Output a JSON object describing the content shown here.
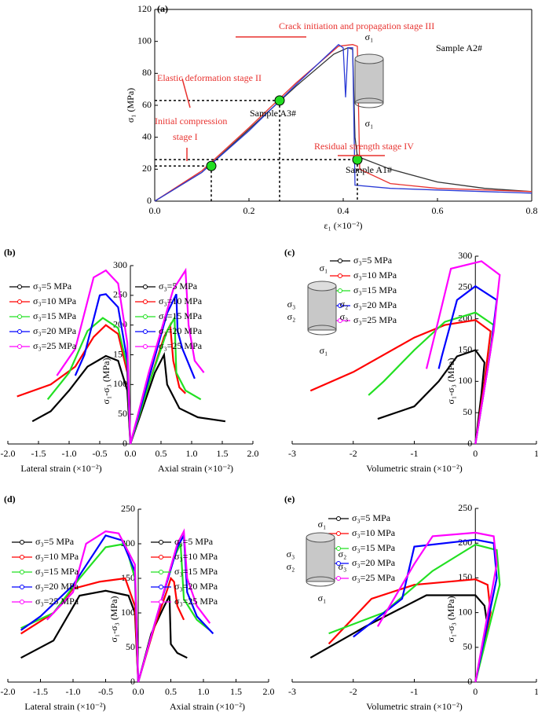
{
  "chart_data": [
    {
      "type": "line",
      "label": "(a)",
      "y_label": "σ₁ (MPa)",
      "x_label": "ε₁ (×10⁻²)",
      "xlim": [
        0,
        0.8
      ],
      "ylim": [
        0,
        120
      ],
      "xticks": [
        {
          "value": 0,
          "label": "0.0"
        },
        {
          "value": 0.2,
          "label": "0.2"
        },
        {
          "value": 0.4,
          "label": "0.4"
        },
        {
          "value": 0.6,
          "label": "0.6"
        },
        {
          "value": 0.8,
          "label": "0.8"
        }
      ],
      "yticks": [
        0,
        20,
        40,
        60,
        80,
        100,
        120
      ],
      "series": [
        {
          "name": "Sample A1#",
          "color": "#333333",
          "x": [
            0,
            0.1,
            0.2,
            0.3,
            0.38,
            0.41,
            0.42,
            0.425,
            0.43,
            0.5,
            0.6,
            0.7,
            0.8
          ],
          "values": [
            0,
            18,
            45,
            72,
            92,
            96,
            95,
            40,
            28,
            20,
            12,
            8,
            6
          ]
        },
        {
          "name": "Sample A2#",
          "color": "#e8322f",
          "x": [
            0,
            0.1,
            0.2,
            0.3,
            0.39,
            0.42,
            0.43,
            0.435,
            0.5,
            0.6,
            0.8
          ],
          "values": [
            0,
            19,
            46,
            74,
            97,
            98,
            97,
            20,
            11,
            8,
            6
          ]
        },
        {
          "name": "Sample A3#",
          "color": "#2b3bd6",
          "x": [
            0,
            0.1,
            0.2,
            0.3,
            0.39,
            0.4,
            0.405,
            0.41,
            0.42,
            0.425,
            0.5,
            0.6,
            0.8
          ],
          "values": [
            0,
            18,
            44,
            73,
            98,
            96,
            65,
            96,
            96,
            10,
            8,
            7,
            5
          ]
        }
      ],
      "highlight_points": {
        "x": [
          0.12,
          0.265,
          0.43
        ],
        "values": [
          22,
          63,
          26
        ]
      },
      "annotations": [
        "Crack initiation and propagation stage III",
        "Elastic deformation stage II",
        "Initial compression",
        "stage I",
        "Residual strength stage IV"
      ],
      "icon_labels": [
        "σ₁",
        "σ₁"
      ]
    },
    {
      "type": "line",
      "label": "(b)",
      "y_label": "σ₁-σ₃ (MPa)",
      "x_labels": [
        "Lateral strain (×10⁻²)",
        "Axial strain (×10⁻²)"
      ],
      "xlim": [
        -2,
        2
      ],
      "ylim": [
        0,
        300
      ],
      "xticks": [
        {
          "value": -2,
          "label": "-2.0"
        },
        {
          "value": -1.5,
          "label": "-1.5"
        },
        {
          "value": -1,
          "label": "-1.0"
        },
        {
          "value": -0.5,
          "label": "-0.5"
        },
        {
          "value": 0,
          "label": "0.0"
        },
        {
          "value": 0.5,
          "label": "0.5"
        },
        {
          "value": 1,
          "label": "1.0"
        },
        {
          "value": 1.5,
          "label": "1.5"
        },
        {
          "value": 2,
          "label": "2.0"
        }
      ],
      "yticks": [
        0,
        50,
        100,
        150,
        200,
        250,
        300
      ],
      "series": [
        {
          "name": "σ₃=5 MPa",
          "color": "#000000",
          "x": [
            0,
            -0.05,
            -0.2,
            -0.4,
            -0.7,
            -1,
            -1.3,
            -1.6
          ],
          "values": [
            0,
            90,
            140,
            148,
            130,
            90,
            55,
            38
          ]
        },
        {
          "name": "σ₃=10 MPa",
          "color": "#ff0000",
          "x": [
            0,
            -0.05,
            -0.2,
            -0.4,
            -0.6,
            -0.9,
            -1.3,
            -1.85
          ],
          "values": [
            0,
            120,
            185,
            200,
            180,
            130,
            100,
            80
          ]
        },
        {
          "name": "σ₃=15 MPa",
          "color": "#22e022",
          "x": [
            0,
            -0.05,
            -0.2,
            -0.45,
            -0.7,
            -1,
            -1.35
          ],
          "values": [
            0,
            130,
            195,
            212,
            190,
            120,
            75
          ]
        },
        {
          "name": "σ₃=20 MPa",
          "color": "#0000ff",
          "x": [
            0,
            -0.05,
            -0.2,
            -0.4,
            -0.5,
            -0.75,
            -0.9
          ],
          "values": [
            0,
            140,
            230,
            252,
            250,
            150,
            115
          ]
        },
        {
          "name": "σ₃=25 MPa",
          "color": "#ff00ff",
          "x": [
            0,
            -0.05,
            -0.2,
            -0.4,
            -0.6,
            -0.9,
            -1.2
          ],
          "values": [
            0,
            170,
            270,
            292,
            280,
            160,
            115
          ]
        },
        {
          "name": "σ₃=5 MPa",
          "color": "#000000",
          "x": [
            0,
            0.2,
            0.4,
            0.55,
            0.6,
            0.8,
            1.1,
            1.55
          ],
          "values": [
            0,
            60,
            120,
            150,
            100,
            60,
            45,
            38
          ]
        },
        {
          "name": "σ₃=10 MPa",
          "color": "#ff0000",
          "x": [
            0,
            0.3,
            0.55,
            0.65,
            0.7,
            0.8,
            0.9
          ],
          "values": [
            0,
            100,
            180,
            200,
            140,
            95,
            85
          ]
        },
        {
          "name": "σ₃=15 MPa",
          "color": "#22e022",
          "x": [
            0,
            0.3,
            0.6,
            0.72,
            0.75,
            0.9,
            1.15
          ],
          "values": [
            0,
            100,
            190,
            212,
            120,
            90,
            75
          ]
        },
        {
          "name": "σ₃=20 MPa",
          "color": "#0000ff",
          "x": [
            0,
            0.3,
            0.6,
            0.75,
            0.77,
            0.85,
            1.05
          ],
          "values": [
            0,
            110,
            220,
            252,
            190,
            160,
            110
          ]
        },
        {
          "name": "σ₃=25 MPa",
          "color": "#ff00ff",
          "x": [
            0,
            0.3,
            0.7,
            0.9,
            0.95,
            1.05,
            1.2
          ],
          "values": [
            0,
            120,
            260,
            292,
            200,
            140,
            120
          ]
        }
      ]
    },
    {
      "type": "line",
      "label": "(c)",
      "y_label": "σ₁-σ₃ (MPa)",
      "x_label": "Volumetric strain (×10⁻²)",
      "xlim": [
        -3,
        1
      ],
      "ylim": [
        0,
        300
      ],
      "xticks": [
        -3,
        -2,
        -1,
        0,
        1
      ],
      "yticks": [
        0,
        50,
        100,
        150,
        200,
        250,
        300
      ],
      "series": [
        {
          "name": "σ₃=5 MPa",
          "color": "#000000",
          "x": [
            0,
            0.1,
            0.15,
            0,
            -0.3,
            -0.6,
            -1,
            -1.6
          ],
          "values": [
            0,
            80,
            130,
            150,
            140,
            100,
            60,
            40
          ]
        },
        {
          "name": "σ₃=10 MPa",
          "color": "#ff0000",
          "x": [
            0,
            0.15,
            0.25,
            0,
            -0.5,
            -1,
            -2,
            -2.7
          ],
          "values": [
            0,
            100,
            180,
            198,
            190,
            170,
            115,
            85
          ]
        },
        {
          "name": "σ₃=15 MPa",
          "color": "#22e022",
          "x": [
            0,
            0.2,
            0.3,
            0,
            -0.5,
            -1,
            -1.5,
            -1.75
          ],
          "values": [
            0,
            120,
            190,
            210,
            195,
            150,
            100,
            78
          ]
        },
        {
          "name": "σ₃=20 MPa",
          "color": "#0000ff",
          "x": [
            0,
            0.25,
            0.35,
            0,
            -0.3,
            -0.55,
            -0.6
          ],
          "values": [
            0,
            150,
            230,
            252,
            230,
            140,
            120
          ]
        },
        {
          "name": "σ₃=25 MPa",
          "color": "#ff00ff",
          "x": [
            0,
            0.3,
            0.4,
            0.1,
            -0.4,
            -0.6,
            -0.8
          ],
          "values": [
            0,
            180,
            270,
            292,
            280,
            200,
            120
          ]
        }
      ],
      "icon_labels": [
        "σ₁",
        "σ₃",
        "σ₂",
        "σ₂",
        "σ₃",
        "σ₁"
      ]
    },
    {
      "type": "line",
      "label": "(d)",
      "y_label": "σ₁-σ₃ (MPa)",
      "x_labels": [
        "Lateral strain (×10⁻²)",
        "Axial strain (×10⁻²)"
      ],
      "xlim": [
        -2,
        2
      ],
      "ylim": [
        0,
        250
      ],
      "xticks": [
        {
          "value": -2,
          "label": "-2.0"
        },
        {
          "value": -1.5,
          "label": "-1.5"
        },
        {
          "value": -1,
          "label": "-1.0"
        },
        {
          "value": -0.5,
          "label": "-0.5"
        },
        {
          "value": 0,
          "label": "0.0"
        },
        {
          "value": 0.5,
          "label": "0.5"
        },
        {
          "value": 1,
          "label": "1.0"
        },
        {
          "value": 1.5,
          "label": "1.5"
        },
        {
          "value": 2,
          "label": "2.0"
        }
      ],
      "yticks": [
        0,
        50,
        100,
        150,
        200,
        250
      ],
      "series": [
        {
          "name": "σ₃=5 MPa",
          "color": "#000000",
          "x": [
            0,
            -0.05,
            -0.15,
            -0.5,
            -0.9,
            -1.3,
            -1.8
          ],
          "values": [
            0,
            100,
            125,
            132,
            125,
            60,
            35
          ]
        },
        {
          "name": "σ₃=10 MPa",
          "color": "#ff0000",
          "x": [
            0,
            -0.05,
            -0.2,
            -0.6,
            -1,
            -1.3,
            -1.8
          ],
          "values": [
            0,
            110,
            150,
            145,
            135,
            100,
            70
          ]
        },
        {
          "name": "σ₃=15 MPa",
          "color": "#22e022",
          "x": [
            0,
            -0.05,
            -0.2,
            -0.5,
            -0.9,
            -1.3,
            -1.8
          ],
          "values": [
            0,
            150,
            200,
            195,
            150,
            100,
            78
          ]
        },
        {
          "name": "σ₃=20 MPa",
          "color": "#0000ff",
          "x": [
            0,
            -0.05,
            -0.25,
            -0.5,
            -1,
            -1.5,
            -1.8
          ],
          "values": [
            0,
            160,
            205,
            212,
            140,
            95,
            75
          ]
        },
        {
          "name": "σ₃=25 MPa",
          "color": "#ff00ff",
          "x": [
            0,
            -0.05,
            -0.3,
            -0.5,
            -0.8,
            -1,
            -1.4
          ],
          "values": [
            0,
            170,
            215,
            218,
            200,
            130,
            90
          ]
        },
        {
          "name": "σ₃=5 MPa",
          "color": "#000000",
          "x": [
            0,
            0.2,
            0.4,
            0.48,
            0.5,
            0.6,
            0.75
          ],
          "values": [
            0,
            70,
            110,
            125,
            55,
            42,
            35
          ]
        },
        {
          "name": "σ₃=10 MPa",
          "color": "#ff0000",
          "x": [
            0,
            0.25,
            0.45,
            0.5,
            0.55,
            0.6,
            0.7
          ],
          "values": [
            0,
            80,
            135,
            150,
            145,
            110,
            90
          ]
        },
        {
          "name": "σ₃=15 MPa",
          "color": "#22e022",
          "x": [
            0,
            0.3,
            0.55,
            0.65,
            0.7,
            0.9,
            1.1
          ],
          "values": [
            0,
            100,
            180,
            200,
            120,
            90,
            75
          ]
        },
        {
          "name": "σ₃=20 MPa",
          "color": "#0000ff",
          "x": [
            0,
            0.3,
            0.6,
            0.7,
            0.75,
            0.9,
            1.15
          ],
          "values": [
            0,
            100,
            195,
            212,
            130,
            95,
            70
          ]
        },
        {
          "name": "σ₃=25 MPa",
          "color": "#ff00ff",
          "x": [
            0,
            0.3,
            0.6,
            0.7,
            0.75,
            0.9,
            1.1
          ],
          "values": [
            0,
            100,
            200,
            218,
            150,
            110,
            85
          ]
        }
      ]
    },
    {
      "type": "line",
      "label": "(e)",
      "y_label": "σ₁-σ₃ (MPa)",
      "x_label": "Volumetric strain (×10⁻²)",
      "xlim": [
        -3,
        1
      ],
      "ylim": [
        0,
        250
      ],
      "xticks": [
        -3,
        -2,
        -1,
        0,
        1
      ],
      "yticks": [
        0,
        50,
        100,
        150,
        200,
        250
      ],
      "series": [
        {
          "name": "σ₃=5 MPa",
          "color": "#000000",
          "x": [
            0,
            0.2,
            0.15,
            0,
            -0.8,
            -1.8,
            -2.7
          ],
          "values": [
            0,
            80,
            110,
            125,
            125,
            80,
            35
          ]
        },
        {
          "name": "σ₃=10 MPa",
          "color": "#ff0000",
          "x": [
            0,
            0.25,
            0.2,
            0,
            -1,
            -1.7,
            -2.4
          ],
          "values": [
            0,
            100,
            140,
            148,
            140,
            120,
            55
          ]
        },
        {
          "name": "σ₃=15 MPa",
          "color": "#22e022",
          "x": [
            0,
            0.4,
            0.35,
            0,
            -0.7,
            -1.5,
            -2.4
          ],
          "values": [
            0,
            140,
            190,
            198,
            160,
            100,
            70
          ]
        },
        {
          "name": "σ₃=20 MPa",
          "color": "#0000ff",
          "x": [
            0,
            0.35,
            0.3,
            0,
            -1,
            -1.2,
            -2
          ],
          "values": [
            0,
            150,
            200,
            205,
            195,
            120,
            65
          ]
        },
        {
          "name": "σ₃=25 MPa",
          "color": "#ff00ff",
          "x": [
            0,
            0.35,
            0.3,
            0,
            -0.7,
            -1,
            -1.6
          ],
          "values": [
            0,
            170,
            210,
            215,
            210,
            170,
            80
          ]
        }
      ],
      "icon_labels": [
        "σ₁",
        "σ₃",
        "σ₂",
        "σ₂",
        "σ₃",
        "σ₁"
      ]
    }
  ]
}
